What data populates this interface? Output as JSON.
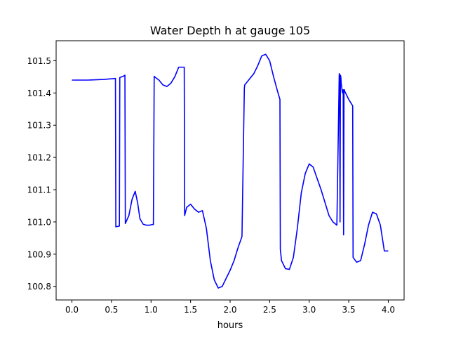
{
  "chart_data": {
    "type": "line",
    "title": "Water Depth h at gauge 105",
    "xlabel": "hours",
    "ylabel": "",
    "xlim": [
      -0.2,
      4.2
    ],
    "ylim": [
      100.758,
      101.562
    ],
    "xticks": [
      0.0,
      0.5,
      1.0,
      1.5,
      2.0,
      2.5,
      3.0,
      3.5,
      4.0
    ],
    "xtick_labels": [
      "0.0",
      "0.5",
      "1.0",
      "1.5",
      "2.0",
      "2.5",
      "3.0",
      "3.5",
      "4.0"
    ],
    "yticks": [
      100.8,
      100.9,
      101.0,
      101.1,
      101.2,
      101.3,
      101.4,
      101.5
    ],
    "ytick_labels": [
      "100.8",
      "100.9",
      "101.0",
      "101.1",
      "101.2",
      "101.3",
      "101.4",
      "101.5"
    ],
    "grid": false,
    "series": [
      {
        "color": "#0000ff",
        "x": [
          0.0,
          0.2,
          0.4,
          0.55,
          0.555,
          0.6,
          0.605,
          0.65,
          0.67,
          0.675,
          0.72,
          0.76,
          0.8,
          0.83,
          0.86,
          0.9,
          0.94,
          0.98,
          1.02,
          1.03,
          1.04,
          1.045,
          1.1,
          1.15,
          1.2,
          1.25,
          1.3,
          1.35,
          1.4,
          1.42,
          1.425,
          1.45,
          1.5,
          1.55,
          1.6,
          1.65,
          1.7,
          1.75,
          1.8,
          1.85,
          1.9,
          1.93,
          1.96,
          2.0,
          2.05,
          2.1,
          2.15,
          2.18,
          2.185,
          2.25,
          2.3,
          2.35,
          2.4,
          2.45,
          2.5,
          2.55,
          2.6,
          2.63,
          2.635,
          2.65,
          2.7,
          2.75,
          2.8,
          2.85,
          2.9,
          2.95,
          3.0,
          3.05,
          3.1,
          3.15,
          3.2,
          3.25,
          3.3,
          3.35,
          3.38,
          3.385,
          3.39,
          3.395,
          3.4,
          3.405,
          3.41,
          3.42,
          3.43,
          3.435,
          3.44,
          3.445,
          3.45,
          3.5,
          3.55,
          3.555,
          3.6,
          3.65,
          3.7,
          3.75,
          3.8,
          3.85,
          3.9,
          3.95,
          4.0
        ],
        "y": [
          101.44,
          101.44,
          101.442,
          101.445,
          100.985,
          100.987,
          101.448,
          101.452,
          101.455,
          100.995,
          101.02,
          101.07,
          101.095,
          101.06,
          101.01,
          100.993,
          100.99,
          100.99,
          100.992,
          100.992,
          101.452,
          101.45,
          101.44,
          101.425,
          101.42,
          101.43,
          101.45,
          101.48,
          101.48,
          101.48,
          101.02,
          101.045,
          101.055,
          101.04,
          101.03,
          101.035,
          100.98,
          100.88,
          100.82,
          100.795,
          100.8,
          100.815,
          100.83,
          100.85,
          100.88,
          100.92,
          100.955,
          101.415,
          101.425,
          101.445,
          101.46,
          101.485,
          101.515,
          101.52,
          101.5,
          101.45,
          101.405,
          101.38,
          100.915,
          100.88,
          100.855,
          100.853,
          100.89,
          100.98,
          101.09,
          101.15,
          101.18,
          101.17,
          101.135,
          101.1,
          101.06,
          101.02,
          101.0,
          100.99,
          101.46,
          101.45,
          101.0,
          101.455,
          101.45,
          101.43,
          101.42,
          101.4,
          101.41,
          100.96,
          101.41,
          101.41,
          101.405,
          101.38,
          101.36,
          100.89,
          100.875,
          100.88,
          100.93,
          100.99,
          101.03,
          101.025,
          100.99,
          100.91,
          100.91
        ]
      }
    ]
  }
}
